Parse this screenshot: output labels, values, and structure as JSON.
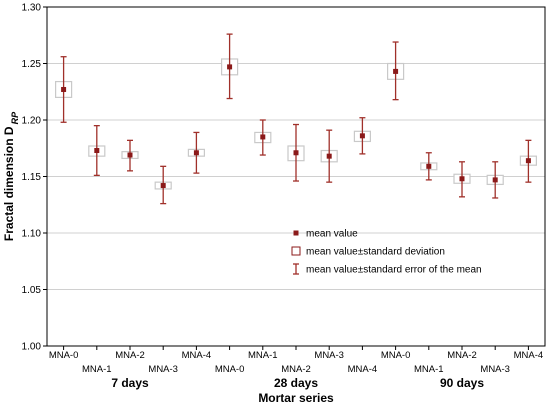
{
  "chart_data": {
    "type": "box",
    "title": "",
    "ylabel": "Fractal dimension D",
    "ylabel_subscript": "RP",
    "xlabel": "Mortar series",
    "ylim": [
      1.0,
      1.3
    ],
    "yticks": [
      "1.00",
      "1.05",
      "1.10",
      "1.15",
      "1.20",
      "1.25",
      "1.30"
    ],
    "grid": "horizontal",
    "groups": [
      {
        "label": "7 days",
        "categories": [
          "MNA-0",
          "MNA-1",
          "MNA-2",
          "MNA-3",
          "MNA-4"
        ]
      },
      {
        "label": "28 days",
        "categories": [
          "MNA-0",
          "MNA-1",
          "MNA-2",
          "MNA-3",
          "MNA-4"
        ]
      },
      {
        "label": "90 days",
        "categories": [
          "MNA-0",
          "MNA-1",
          "MNA-2",
          "MNA-3",
          "MNA-4"
        ]
      }
    ],
    "series": [
      {
        "group": "7 days",
        "category": "MNA-0",
        "mean": 1.227,
        "sd_low": 1.22,
        "sd_high": 1.234,
        "se_low": 1.198,
        "se_high": 1.256
      },
      {
        "group": "7 days",
        "category": "MNA-1",
        "mean": 1.173,
        "sd_low": 1.168,
        "sd_high": 1.177,
        "se_low": 1.151,
        "se_high": 1.195
      },
      {
        "group": "7 days",
        "category": "MNA-2",
        "mean": 1.169,
        "sd_low": 1.166,
        "sd_high": 1.172,
        "se_low": 1.155,
        "se_high": 1.182
      },
      {
        "group": "7 days",
        "category": "MNA-3",
        "mean": 1.142,
        "sd_low": 1.139,
        "sd_high": 1.145,
        "se_low": 1.126,
        "se_high": 1.159
      },
      {
        "group": "7 days",
        "category": "MNA-4",
        "mean": 1.171,
        "sd_low": 1.168,
        "sd_high": 1.174,
        "se_low": 1.153,
        "se_high": 1.189
      },
      {
        "group": "28 days",
        "category": "MNA-0",
        "mean": 1.247,
        "sd_low": 1.24,
        "sd_high": 1.254,
        "se_low": 1.219,
        "se_high": 1.276
      },
      {
        "group": "28 days",
        "category": "MNA-1",
        "mean": 1.185,
        "sd_low": 1.18,
        "sd_high": 1.189,
        "se_low": 1.169,
        "se_high": 1.2
      },
      {
        "group": "28 days",
        "category": "MNA-2",
        "mean": 1.171,
        "sd_low": 1.164,
        "sd_high": 1.177,
        "se_low": 1.146,
        "se_high": 1.196
      },
      {
        "group": "28 days",
        "category": "MNA-3",
        "mean": 1.168,
        "sd_low": 1.163,
        "sd_high": 1.173,
        "se_low": 1.145,
        "se_high": 1.191
      },
      {
        "group": "28 days",
        "category": "MNA-4",
        "mean": 1.186,
        "sd_low": 1.181,
        "sd_high": 1.19,
        "se_low": 1.17,
        "se_high": 1.202
      },
      {
        "group": "90 days",
        "category": "MNA-0",
        "mean": 1.243,
        "sd_low": 1.236,
        "sd_high": 1.25,
        "se_low": 1.218,
        "se_high": 1.269
      },
      {
        "group": "90 days",
        "category": "MNA-1",
        "mean": 1.159,
        "sd_low": 1.156,
        "sd_high": 1.162,
        "se_low": 1.147,
        "se_high": 1.171
      },
      {
        "group": "90 days",
        "category": "MNA-2",
        "mean": 1.148,
        "sd_low": 1.144,
        "sd_high": 1.152,
        "se_low": 1.132,
        "se_high": 1.163
      },
      {
        "group": "90 days",
        "category": "MNA-3",
        "mean": 1.147,
        "sd_low": 1.143,
        "sd_high": 1.151,
        "se_low": 1.131,
        "se_high": 1.163
      },
      {
        "group": "90 days",
        "category": "MNA-4",
        "mean": 1.164,
        "sd_low": 1.16,
        "sd_high": 1.168,
        "se_low": 1.145,
        "se_high": 1.182
      }
    ],
    "legend": {
      "placement": "center-right",
      "items": [
        {
          "marker": "point",
          "label": "mean value"
        },
        {
          "marker": "box",
          "label": "mean value±standard deviation"
        },
        {
          "marker": "whisker",
          "label": "mean value±standard error of the mean"
        }
      ]
    },
    "colors": {
      "mean": "#8b1a1a",
      "whisker": "#a0302a",
      "box": "#c9c9c9",
      "grid": "#d0d0d0",
      "axis": "#000000"
    }
  }
}
